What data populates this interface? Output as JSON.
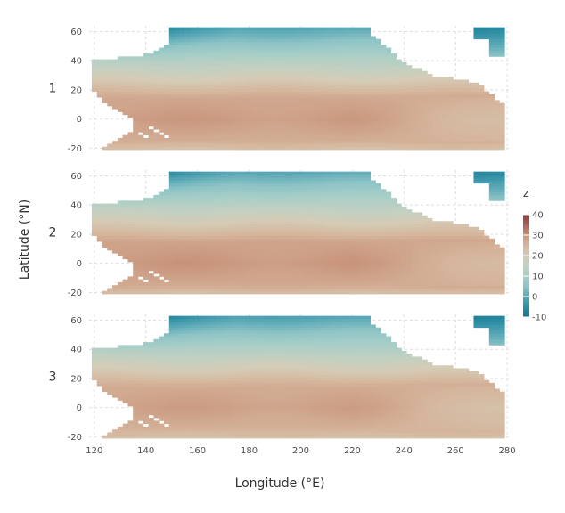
{
  "chart_data": {
    "type": "heatmap",
    "xlabel": "Longitude (°E)",
    "ylabel": "Latitude (°N)",
    "xlim": [
      118,
      281
    ],
    "ylim": [
      -21,
      64
    ],
    "x_ticks": [
      120,
      140,
      160,
      180,
      200,
      220,
      240,
      260,
      280
    ],
    "y_ticks": [
      -20,
      0,
      20,
      40,
      60
    ],
    "grid": true,
    "panels": [
      {
        "label": "1",
        "temp_offset": 0.0
      },
      {
        "label": "2",
        "temp_offset": 0.6
      },
      {
        "label": "3",
        "temp_offset": -0.6
      }
    ],
    "legend": {
      "title": "z",
      "position": "right",
      "range": [
        -10,
        40
      ],
      "ticks": [
        -10,
        0,
        10,
        20,
        30,
        40
      ]
    },
    "colorscale": [
      [
        -12,
        "#0a6a82"
      ],
      [
        -5,
        "#2e8ea4"
      ],
      [
        0,
        "#5aa8b6"
      ],
      [
        5,
        "#8ec4c6"
      ],
      [
        10,
        "#a8cec7"
      ],
      [
        15,
        "#c1d0c2"
      ],
      [
        20,
        "#d5ccb6"
      ],
      [
        25,
        "#d5b69d"
      ],
      [
        30,
        "#c9967d"
      ],
      [
        35,
        "#a86458"
      ],
      [
        40,
        "#8a3b3d"
      ]
    ],
    "grid_spacing_deg": 2,
    "coastline_lon_by_lat": [
      [
        -20,
        123
      ],
      [
        -15,
        128
      ],
      [
        -10,
        134
      ],
      [
        0,
        136
      ],
      [
        10,
        125
      ],
      [
        20,
        120
      ],
      [
        30,
        120
      ],
      [
        40,
        120
      ],
      [
        44,
        140
      ],
      [
        50,
        148
      ],
      [
        58,
        150
      ],
      [
        64,
        150
      ]
    ],
    "east_edge_lon_by_lat": [
      [
        -20,
        279
      ],
      [
        -10,
        279
      ],
      [
        0,
        279
      ],
      [
        10,
        279
      ],
      [
        20,
        271
      ],
      [
        25,
        269
      ],
      [
        30,
        251
      ],
      [
        35,
        245
      ],
      [
        40,
        239
      ],
      [
        45,
        236
      ],
      [
        55,
        230
      ],
      [
        60,
        226
      ],
      [
        64,
        226
      ]
    ],
    "field_model": {
      "equator_max_c": 29,
      "east_cold_tongue_c": 23,
      "north_pole_c": 0
    }
  }
}
